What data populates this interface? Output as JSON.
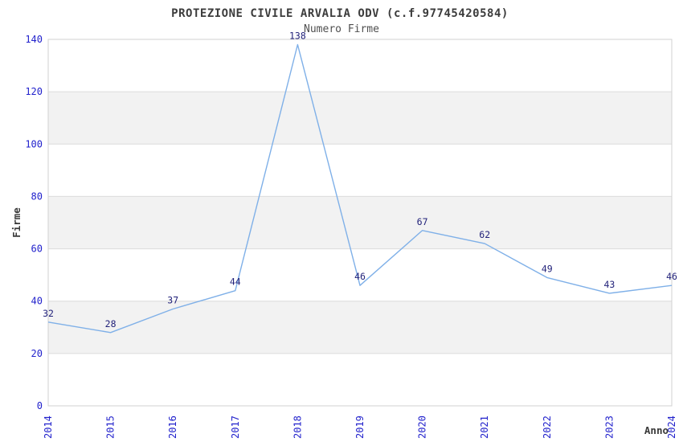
{
  "header": {
    "title": "PROTEZIONE CIVILE ARVALIA ODV (c.f.97745420584)",
    "subtitle": "Numero Firme"
  },
  "chart_data": {
    "type": "line",
    "title": "PROTEZIONE CIVILE ARVALIA ODV (c.f.97745420584)",
    "subtitle": "Numero Firme",
    "xlabel": "Anno",
    "ylabel": "Firme",
    "categories": [
      "2014",
      "2015",
      "2016",
      "2017",
      "2018",
      "2019",
      "2020",
      "2021",
      "2022",
      "2023",
      "2024"
    ],
    "values": [
      32,
      28,
      37,
      44,
      138,
      46,
      67,
      62,
      49,
      43,
      46
    ],
    "ylim": [
      0,
      140
    ],
    "ytick_step": 20,
    "yticks": [
      0,
      20,
      40,
      60,
      80,
      100,
      120,
      140
    ],
    "grid": true,
    "legend": "none",
    "colors": {
      "line": "#7fb0e8",
      "tick_label": "#2222cc",
      "point_label": "#22227a",
      "band": "#f2f2f2",
      "gridline": "#dcdcdc",
      "plot_border": "#d2d2d2",
      "text": "#3c3c3c",
      "background": "#ffffff"
    }
  }
}
